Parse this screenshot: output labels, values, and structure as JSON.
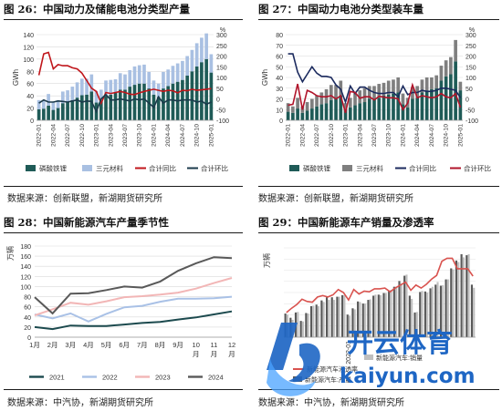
{
  "panels": [
    {
      "title": "图 26：中国动力及储能电池分类型产量",
      "source": "数据来源：创新联盟，新湖期货研究所",
      "chart_data": {
        "type": "bar",
        "xlabel": "",
        "ylabel_left": "GWh",
        "ylabel_right": "%",
        "ylim_left": [
          0,
          140
        ],
        "yticks_left": [
          "0",
          "20",
          "40",
          "60",
          "80",
          "100",
          "120",
          "140"
        ],
        "ylim_right": [
          -100,
          300
        ],
        "yticks_right": [
          "-100",
          "-50",
          "0",
          "50",
          "100",
          "150",
          "200",
          "250",
          "300"
        ],
        "categories": [
          "2022-01",
          "2022-02",
          "2022-03",
          "2022-04",
          "2022-05",
          "2022-06",
          "2022-07",
          "2022-08",
          "2022-09",
          "2022-10",
          "2022-11",
          "2022-12",
          "2023-01",
          "2023-02",
          "2023-03",
          "2023-04",
          "2023-05",
          "2023-06",
          "2023-07",
          "2023-08",
          "2023-09",
          "2023-10",
          "2023-11",
          "2023-12",
          "2024-01",
          "2024-02",
          "2024-03",
          "2024-04",
          "2024-05",
          "2024-06",
          "2024-07",
          "2024-08",
          "2024-09",
          "2024-10",
          "2024-11",
          "2024-12",
          "2025-01"
        ],
        "xticks": [
          "2022-01",
          "2022-04",
          "2022-07",
          "2022-10",
          "2023-01",
          "2023-04",
          "2023-07",
          "2023-10",
          "2024-01",
          "2024-04",
          "2024-07",
          "2024-10",
          "2025-01"
        ],
        "series": [
          {
            "name": "磷酸铁锂",
            "kind": "bar",
            "axis": "left",
            "values": [
              18,
              19,
              24,
              17,
              20,
              28,
              30,
              33,
              37,
              41,
              42,
              47,
              29,
              32,
              40,
              42,
              45,
              50,
              50,
              55,
              58,
              60,
              60,
              52,
              42,
              38,
              52,
              56,
              60,
              63,
              66,
              73,
              80,
              88,
              95,
              100,
              78
            ]
          },
          {
            "name": "三元材料",
            "kind": "bar",
            "axis": "left",
            "values": [
              15,
              14,
              19,
              12,
              13,
              19,
              19,
              22,
              25,
              27,
              26,
              28,
              19,
              18,
              25,
              24,
              22,
              27,
              25,
              27,
              30,
              30,
              31,
              27,
              23,
              22,
              27,
              27,
              29,
              30,
              31,
              32,
              35,
              38,
              40,
              42,
              30
            ]
          },
          {
            "name": "合计同比",
            "kind": "line",
            "axis": "right",
            "values": [
              110,
              210,
              217,
              140,
              160,
              155,
              155,
              145,
              140,
              120,
              85,
              50,
              35,
              -20,
              30,
              25,
              30,
              35,
              30,
              22,
              20,
              28,
              35,
              40,
              45,
              40,
              35,
              40,
              38,
              28,
              40,
              38,
              45,
              40,
              42,
              45,
              48
            ]
          },
          {
            "name": "合计环比",
            "kind": "line",
            "axis": "right",
            "values": [
              -20,
              -5,
              -15,
              -15,
              -10,
              -12,
              -15,
              -10,
              -5,
              -15,
              -10,
              -12,
              -60,
              0,
              20,
              -5,
              -5,
              0,
              -5,
              -10,
              0,
              -5,
              0,
              -20,
              -40,
              10,
              -20,
              -5,
              -5,
              -10,
              -5,
              -5,
              -5,
              -15,
              -10,
              -25,
              -15
            ]
          }
        ],
        "colors": {
          "lfp": "#1f5b57",
          "ncm": "#a9c0e2",
          "yoy": "#c0161b",
          "mom": "#1b3a4b"
        },
        "legend": "bottom"
      }
    },
    {
      "title": "图 27：中国动力电池分类型装车量",
      "source": "数据来源：创新联盟，新湖期货研究所",
      "chart_data": {
        "type": "bar",
        "xlabel": "",
        "ylabel_left": "GWh",
        "ylabel_right": "%",
        "ylim_left": [
          0,
          80
        ],
        "yticks_left": [
          "0",
          "10",
          "20",
          "30",
          "40",
          "50",
          "60",
          "70",
          "80"
        ],
        "ylim_right": [
          -100,
          300
        ],
        "yticks_right": [
          "-100",
          "-50",
          "0",
          "50",
          "100",
          "150",
          "200",
          "250",
          "300"
        ],
        "categories": [
          "2022-01",
          "2022-02",
          "2022-03",
          "2022-04",
          "2022-05",
          "2022-06",
          "2022-07",
          "2022-08",
          "2022-09",
          "2022-10",
          "2022-11",
          "2022-12",
          "2023-01",
          "2023-02",
          "2023-03",
          "2023-04",
          "2023-05",
          "2023-06",
          "2023-07",
          "2023-08",
          "2023-09",
          "2023-10",
          "2023-11",
          "2023-12",
          "2024-01",
          "2024-02",
          "2024-03",
          "2024-04",
          "2024-05",
          "2024-06",
          "2024-07",
          "2024-08",
          "2024-09",
          "2024-10",
          "2024-11",
          "2024-12",
          "2025-01"
        ],
        "xticks": [
          "2022-01",
          "2022-04",
          "2022-07",
          "2022-10",
          "2023-01",
          "2023-04",
          "2023-07",
          "2023-10",
          "2024-01",
          "2024-04",
          "2024-07",
          "2024-10",
          "2025-01"
        ],
        "series": [
          {
            "name": "磷酸铁锂",
            "kind": "bar",
            "axis": "left",
            "values": [
              8,
              7,
              11,
              7,
              9,
              11,
              13,
              15,
              16,
              19,
              21,
              23,
              10,
              12,
              14,
              16,
              17,
              20,
              20,
              21,
              23,
              24,
              25,
              26,
              15,
              12,
              20,
              21,
              26,
              28,
              29,
              30,
              37,
              41,
              43,
              55,
              28
            ]
          },
          {
            "name": "三元材料",
            "kind": "bar",
            "axis": "left",
            "values": [
              8,
              6,
              10,
              6,
              8,
              9,
              10,
              11,
              13,
              14,
              12,
              14,
              6,
              9,
              12,
              12,
              13,
              12,
              12,
              13,
              12,
              13,
              13,
              14,
              10,
              9,
              11,
              11,
              12,
              12,
              11,
              12,
              14,
              15,
              16,
              20,
              8
            ]
          },
          {
            "name": "合计同比",
            "kind": "line",
            "axis": "right",
            "values": [
              210,
              210,
              125,
              80,
              115,
              150,
              120,
              105,
              105,
              100,
              65,
              45,
              -15,
              60,
              25,
              55,
              55,
              40,
              30,
              25,
              25,
              30,
              30,
              10,
              60,
              20,
              30,
              30,
              40,
              35,
              35,
              40,
              50,
              50,
              45,
              40,
              5
            ]
          },
          {
            "name": "合计环比",
            "kind": "line",
            "axis": "right",
            "values": [
              -30,
              -25,
              70,
              -50,
              40,
              30,
              15,
              10,
              10,
              15,
              0,
              15,
              -65,
              35,
              30,
              3,
              10,
              10,
              -5,
              12,
              8,
              5,
              5,
              0,
              -50,
              -20,
              65,
              5,
              15,
              10,
              5,
              10,
              25,
              10,
              5,
              25,
              -40
            ]
          }
        ],
        "colors": {
          "lfp": "#1f5b57",
          "ncm": "#7f7f7f",
          "yoy": "#1b2a5e",
          "mom": "#b0142a"
        },
        "legend": "bottom"
      }
    },
    {
      "title": "图 28：中国新能源汽车产量季节性",
      "source": "数据来源：中汽协，新湖期货研究所",
      "chart_data": {
        "type": "line",
        "xlabel": "",
        "ylabel": "万辆",
        "ylim": [
          0,
          180
        ],
        "yticks": [
          "0",
          "20",
          "40",
          "60",
          "80",
          "100",
          "120",
          "140",
          "160",
          "180"
        ],
        "categories": [
          "1月",
          "2月",
          "3月",
          "4月",
          "5月",
          "6月",
          "7月",
          "8月",
          "9月",
          "10月",
          "11月",
          "12月"
        ],
        "series": [
          {
            "name": "2021",
            "values": [
              20,
              16,
              23,
              22,
              22,
              25,
              28,
              30,
              35,
              39,
              45,
              51
            ]
          },
          {
            "name": "2022",
            "values": [
              45,
              37,
              47,
              31,
              46,
              59,
              62,
              70,
              76,
              76,
              77,
              80
            ]
          },
          {
            "name": "2023",
            "values": [
              43,
              55,
              68,
              64,
              71,
              79,
              81,
              84,
              88,
              96,
              107,
              117
            ]
          },
          {
            "name": "2024",
            "values": [
              79,
              47,
              86,
              87,
              93,
              100,
              98,
              110,
              131,
              146,
              158,
              156
            ]
          }
        ],
        "colors": {
          "2021": "#1c4a4e",
          "2022": "#a9c1e6",
          "2023": "#f2b6b6",
          "2024": "#595959"
        },
        "legend": "bottom"
      }
    },
    {
      "title": "图 29：中国新能源车产销量及渗透率",
      "source": "数据来源：中汽协，新湖期货研究所",
      "chart_data": {
        "type": "bar",
        "xlabel": "",
        "ylabel": "万辆",
        "xticks": [
          "2022-01"
        ],
        "series_labels": [
          "新能源汽车:产量",
          "新能源汽车:销量",
          "新能源汽车渗透率"
        ],
        "series": [
          {
            "name": "新能源汽车:产量",
            "kind": "bar",
            "values": [
              45,
              37,
              47,
              31,
              46,
              59,
              62,
              70,
              76,
              76,
              77,
              80,
              43,
              55,
              68,
              64,
              71,
              79,
              81,
              84,
              88,
              96,
              107,
              117,
              79,
              47,
              86,
              87,
              93,
              100,
              98,
              110,
              131,
              146,
              158,
              156,
              100
            ]
          },
          {
            "name": "新能源汽车:销量",
            "kind": "bar",
            "values": [
              43,
              33,
              48,
              30,
              45,
              60,
              59,
              67,
              71,
              71,
              77,
              80,
              41,
              53,
              67,
              64,
              72,
              81,
              80,
              84,
              90,
              96,
              102,
              119,
              73,
              48,
              88,
              85,
              96,
              105,
              99,
              110,
              129,
              143,
              152,
              158,
              94
            ]
          },
          {
            "name": "新能源汽车渗透率",
            "kind": "line",
            "values": [
              16.5,
              19.5,
              22,
              25.5,
              24,
              23.5,
              27,
              28,
              27,
              28.5,
              32,
              30,
              25,
              32,
              29,
              31,
              30.5,
              32.5,
              32.5,
              33,
              30.5,
              33,
              35,
              37,
              31.5,
              35,
              33,
              35.5,
              39,
              41.5,
              51,
              53,
              53,
              46,
              46,
              46,
              41
            ]
          }
        ],
        "colors": {
          "production": "#595959",
          "sales": "#bfbfbf",
          "penetration": "#d9534f"
        },
        "legend": "bottom"
      }
    }
  ],
  "watermark": {
    "brand": "开云体育",
    "domain": "kaiyun.com",
    "brand_color": "#1e66c4"
  }
}
